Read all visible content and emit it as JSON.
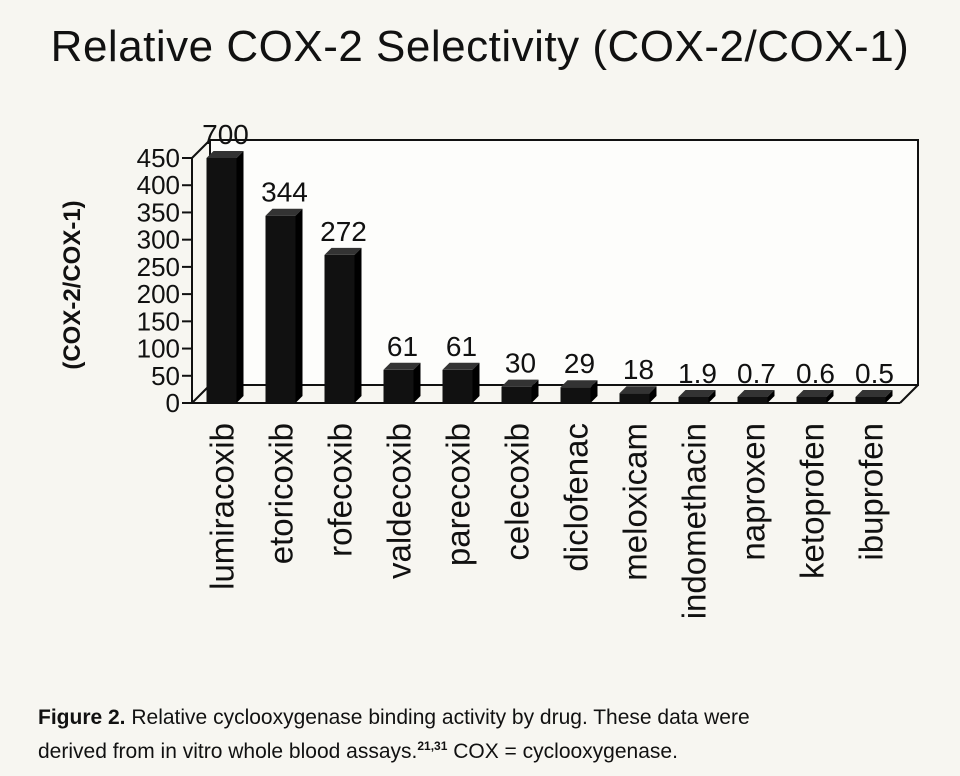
{
  "chart_data": {
    "type": "bar",
    "title": "Relative COX-2 Selectivity (COX-2/COX-1)",
    "ylabel": "(COX-2/COX-1)",
    "xlabel": "",
    "ylim": [
      0,
      450
    ],
    "yticks": [
      0,
      50,
      100,
      150,
      200,
      250,
      300,
      350,
      400,
      450
    ],
    "grid": false,
    "categories": [
      "lumiracoxib",
      "etoricoxib",
      "rofecoxib",
      "valdecoxib",
      "parecoxib",
      "celecoxib",
      "diclofenac",
      "meloxicam",
      "indomethacin",
      "naproxen",
      "ketoprofen",
      "ibuprofen"
    ],
    "values": [
      700,
      344,
      272,
      61,
      61,
      30,
      29,
      18,
      1.9,
      0.7,
      0.6,
      0.5
    ],
    "data_labels": [
      "700",
      "344",
      "272",
      "61",
      "61",
      "30",
      "29",
      "18",
      "1.9",
      "0.7",
      "0.6",
      "0.5"
    ],
    "bar_color": "#111111",
    "note": "lumiracoxib bar is truncated at the axis maximum (450)"
  },
  "caption": {
    "lead": "Figure 2.",
    "text1": " Relative cyclooxygenase binding activity by drug. These data were",
    "text2": "derived from in vitro whole blood assays.",
    "refs": "21,31",
    "text3": " COX = cyclooxygenase."
  }
}
